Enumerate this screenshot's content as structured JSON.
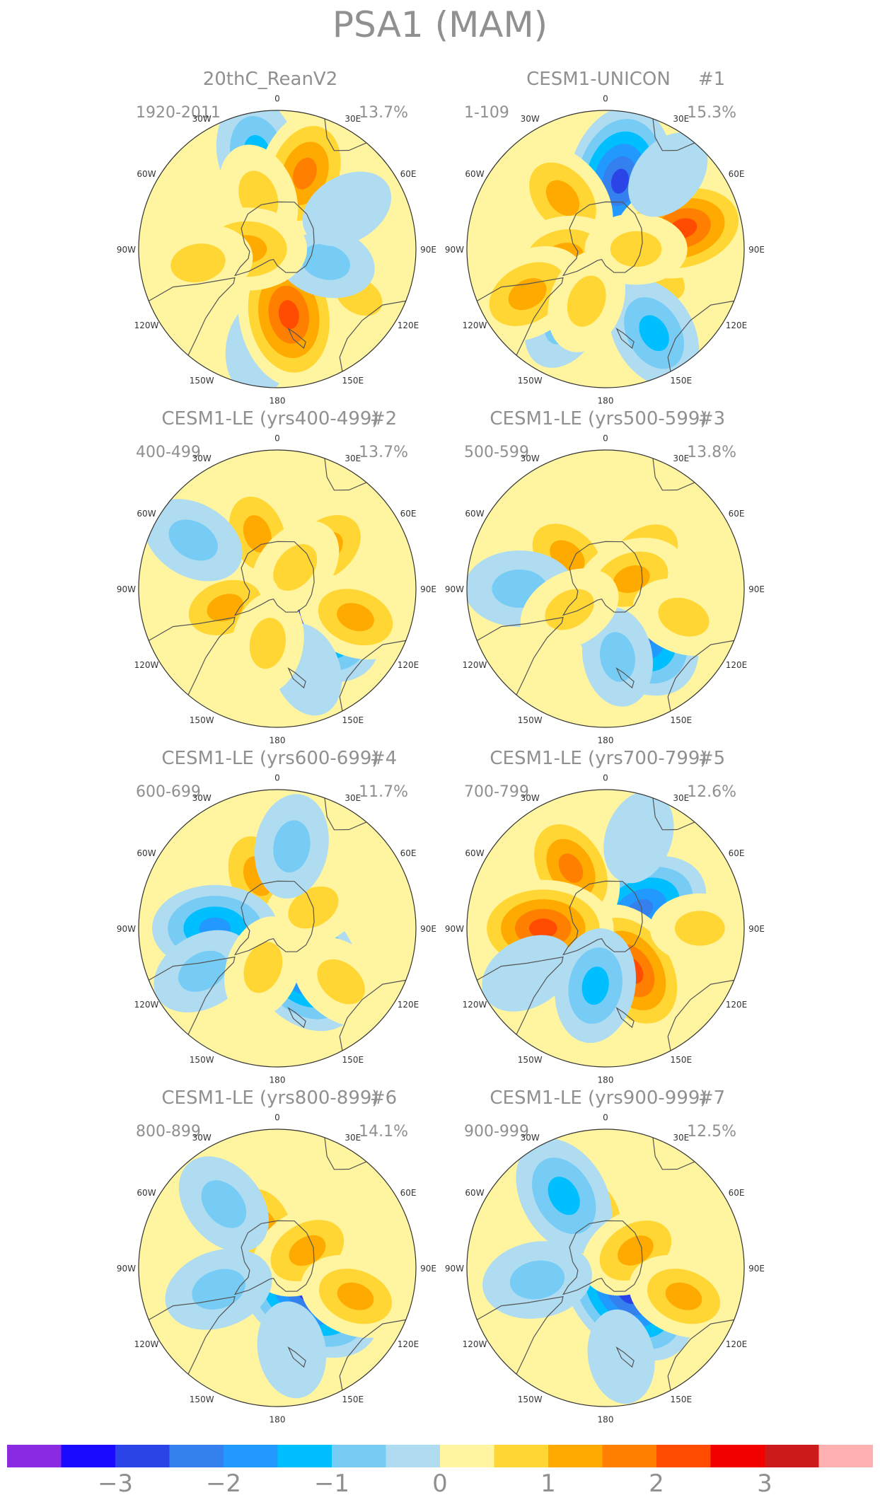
{
  "title": "PSA1 (MAM)",
  "panels": [
    {
      "name": "20thC_ReanV2",
      "run": "",
      "years": "1920-2011",
      "variance": "13.7%"
    },
    {
      "name": "CESM1-UNICON",
      "run": "#1",
      "years": "1-109",
      "variance": "15.3%"
    },
    {
      "name": "CESM1-LE (yrs400-499)",
      "run": "#2",
      "years": "400-499",
      "variance": "13.7%"
    },
    {
      "name": "CESM1-LE (yrs500-599)",
      "run": "#3",
      "years": "500-599",
      "variance": "13.8%"
    },
    {
      "name": "CESM1-LE (yrs600-699)",
      "run": "#4",
      "years": "600-699",
      "variance": "11.7%"
    },
    {
      "name": "CESM1-LE (yrs700-799)",
      "run": "#5",
      "years": "700-799",
      "variance": "12.6%"
    },
    {
      "name": "CESM1-LE (yrs800-899)",
      "run": "#6",
      "years": "800-899",
      "variance": "14.1%"
    },
    {
      "name": "CESM1-LE (yrs900-999)",
      "run": "#7",
      "years": "900-999",
      "variance": "12.5%"
    }
  ],
  "longitude_labels": [
    "0",
    "30E",
    "60E",
    "90E",
    "120E",
    "150E",
    "180",
    "150W",
    "120W",
    "90W",
    "60W",
    "30W"
  ],
  "colorbar": {
    "colors": [
      "#8a2be2",
      "#1a0aff",
      "#2a44e8",
      "#3380ee",
      "#2299ff",
      "#00bfff",
      "#77ccf5",
      "#b0dcf2",
      "#fff5a0",
      "#ffd633",
      "#ffaa00",
      "#ff7f00",
      "#ff4c00",
      "#f20000",
      "#cc1a1a",
      "#ffb0b0"
    ],
    "tick_labels": [
      "−3",
      "−2",
      "−1",
      "0",
      "1",
      "2",
      "3"
    ],
    "tick_values": [
      -3,
      -2,
      -1,
      0,
      1,
      2,
      3
    ]
  },
  "palette": {
    "label_gray": "#909090",
    "coast_gray": "#555555",
    "neg_fill": "#b0dcf2",
    "pos_fill": "#fff5a0"
  },
  "anomalies": [
    [
      [
        -12,
        70,
        -1.2
      ],
      [
        52,
        50,
        1.5
      ],
      [
        -170,
        72,
        -0.5
      ],
      [
        120,
        68,
        0.6
      ],
      [
        170,
        48,
        2.4
      ],
      [
        105,
        36,
        -0.6
      ],
      [
        20,
        58,
        1.8
      ],
      [
        -20,
        40,
        0.9
      ],
      [
        -90,
        22,
        1.4
      ],
      [
        -100,
        58,
        1.0
      ],
      [
        60,
        58,
        -0.4
      ]
    ],
    [
      [
        12,
        50,
        -2.6
      ],
      [
        -40,
        48,
        1.4
      ],
      [
        120,
        45,
        0.9
      ],
      [
        75,
        58,
        2.2
      ],
      [
        150,
        70,
        -1.2
      ],
      [
        -100,
        30,
        1.2
      ],
      [
        -150,
        60,
        -0.6
      ],
      [
        90,
        22,
        0.7
      ],
      [
        40,
        70,
        -0.4
      ],
      [
        -120,
        65,
        1.5
      ],
      [
        -160,
        40,
        0.8
      ]
    ],
    [
      [
        130,
        30,
        -3.0
      ],
      [
        -20,
        42,
        1.2
      ],
      [
        50,
        45,
        1.4
      ],
      [
        40,
        20,
        0.8
      ],
      [
        -110,
        40,
        1.1
      ],
      [
        110,
        60,
        1.2
      ],
      [
        -60,
        70,
        -0.8
      ],
      [
        160,
        62,
        -0.4
      ],
      [
        -170,
        40,
        0.7
      ]
    ],
    [
      [
        142,
        32,
        -3.0
      ],
      [
        -50,
        36,
        1.3
      ],
      [
        50,
        36,
        1.2
      ],
      [
        70,
        20,
        1.1
      ],
      [
        -90,
        62,
        -1.0
      ],
      [
        110,
        60,
        0.8
      ],
      [
        170,
        50,
        -0.6
      ],
      [
        -120,
        30,
        0.8
      ]
    ],
    [
      [
        145,
        28,
        -2.8
      ],
      [
        -20,
        40,
        1.5
      ],
      [
        60,
        30,
        0.9
      ],
      [
        -90,
        45,
        -1.6
      ],
      [
        10,
        60,
        -0.8
      ],
      [
        130,
        60,
        0.9
      ],
      [
        -120,
        62,
        -0.8
      ],
      [
        -160,
        30,
        0.8
      ]
    ],
    [
      [
        62,
        28,
        -2.2
      ],
      [
        -30,
        50,
        1.6
      ],
      [
        148,
        36,
        2.3
      ],
      [
        -90,
        45,
        2.2
      ],
      [
        190,
        42,
        -1.2
      ],
      [
        90,
        68,
        0.6
      ],
      [
        -120,
        65,
        -0.5
      ],
      [
        20,
        70,
        -0.4
      ]
    ],
    [
      [
        128,
        28,
        -3.0
      ],
      [
        -20,
        30,
        1.5
      ],
      [
        60,
        25,
        1.3
      ],
      [
        -40,
        60,
        -0.9
      ],
      [
        -110,
        45,
        -1.0
      ],
      [
        110,
        60,
        1.1
      ],
      [
        170,
        60,
        -0.5
      ]
    ],
    [
      [
        138,
        24,
        -2.8
      ],
      [
        -15,
        36,
        1.4
      ],
      [
        -30,
        60,
        -1.5
      ],
      [
        60,
        25,
        1.2
      ],
      [
        -100,
        50,
        -1.0
      ],
      [
        110,
        60,
        1.1
      ],
      [
        170,
        65,
        -0.4
      ]
    ]
  ]
}
